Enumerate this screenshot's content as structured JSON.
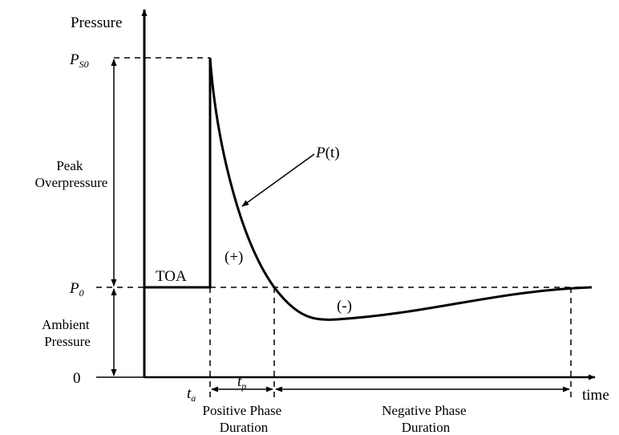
{
  "y_axis_label": "Pressure",
  "x_axis_label": "time",
  "levels": {
    "peak": {
      "symbol": "P",
      "subscript": "S0"
    },
    "ambient": {
      "symbol": "P",
      "subscript": "0"
    },
    "zero": "0"
  },
  "annotations": {
    "peak_overpressure": [
      "Peak",
      "Overpressure"
    ],
    "ambient_pressure": [
      "Ambient",
      "Pressure"
    ],
    "toa": "TOA",
    "curve_label": {
      "italic": "P",
      "rest": "(t)"
    },
    "positive_region": "(+)",
    "negative_region": "(-)"
  },
  "time_marks": {
    "arrival": {
      "symbol": "t",
      "subscript": "a"
    },
    "positive_phase": {
      "symbol": "t",
      "subscript": "p"
    }
  },
  "phase_labels": {
    "positive": [
      "Positive Phase",
      "Duration"
    ],
    "negative": [
      "Negative Phase",
      "Duration"
    ]
  }
}
